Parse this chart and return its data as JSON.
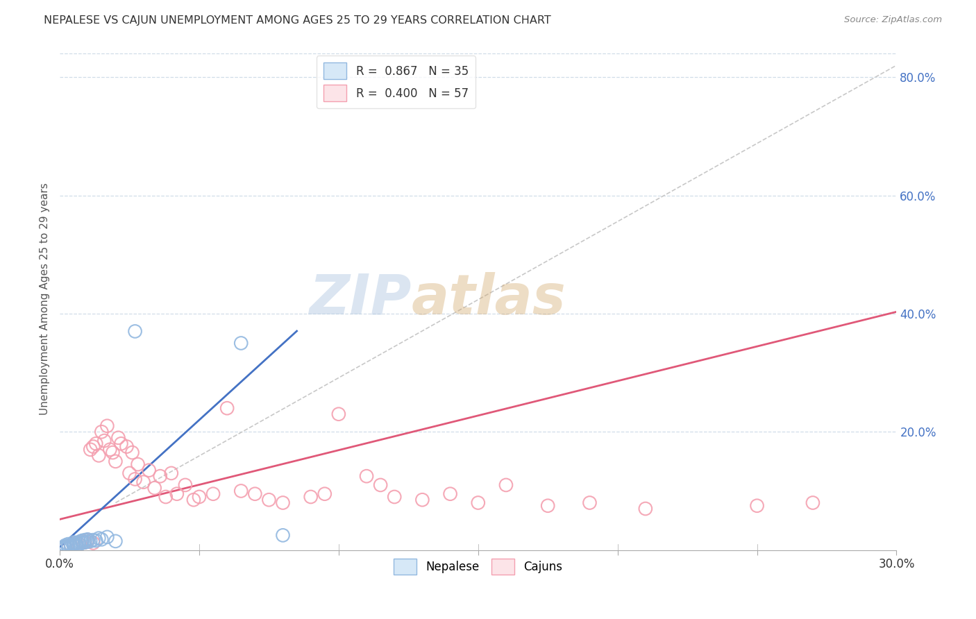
{
  "title": "NEPALESE VS CAJUN UNEMPLOYMENT AMONG AGES 25 TO 29 YEARS CORRELATION CHART",
  "source": "Source: ZipAtlas.com",
  "ylabel": "Unemployment Among Ages 25 to 29 years",
  "nepalese_color": "#92b8e0",
  "cajun_color": "#f4a0b0",
  "nepalese_line_color": "#4472c4",
  "cajun_line_color": "#e05878",
  "diagonal_line_color": "#c8c8c8",
  "watermark_color": "#c8d8ee",
  "background_color": "#ffffff",
  "grid_color": "#d0dde8",
  "xlim": [
    0.0,
    0.3
  ],
  "ylim": [
    0.0,
    0.85
  ],
  "nepalese_R": 0.867,
  "nepalese_N": 35,
  "cajun_R": 0.4,
  "cajun_N": 57,
  "nepalese_x": [
    0.0005,
    0.001,
    0.001,
    0.0015,
    0.002,
    0.002,
    0.002,
    0.003,
    0.003,
    0.003,
    0.004,
    0.004,
    0.005,
    0.005,
    0.005,
    0.006,
    0.006,
    0.007,
    0.007,
    0.008,
    0.008,
    0.009,
    0.009,
    0.01,
    0.01,
    0.011,
    0.012,
    0.013,
    0.014,
    0.015,
    0.017,
    0.02,
    0.027,
    0.065,
    0.08
  ],
  "nepalese_y": [
    0.002,
    0.003,
    0.004,
    0.005,
    0.004,
    0.006,
    0.008,
    0.005,
    0.007,
    0.01,
    0.006,
    0.009,
    0.007,
    0.01,
    0.013,
    0.008,
    0.012,
    0.01,
    0.014,
    0.012,
    0.016,
    0.013,
    0.017,
    0.014,
    0.018,
    0.015,
    0.017,
    0.016,
    0.02,
    0.018,
    0.022,
    0.015,
    0.37,
    0.35,
    0.025
  ],
  "cajun_x": [
    0.002,
    0.004,
    0.005,
    0.006,
    0.007,
    0.008,
    0.009,
    0.01,
    0.011,
    0.012,
    0.012,
    0.013,
    0.014,
    0.015,
    0.016,
    0.017,
    0.018,
    0.019,
    0.02,
    0.021,
    0.022,
    0.024,
    0.025,
    0.026,
    0.027,
    0.028,
    0.03,
    0.032,
    0.034,
    0.036,
    0.038,
    0.04,
    0.042,
    0.045,
    0.048,
    0.05,
    0.055,
    0.06,
    0.065,
    0.07,
    0.075,
    0.08,
    0.09,
    0.095,
    0.1,
    0.11,
    0.115,
    0.12,
    0.13,
    0.14,
    0.15,
    0.16,
    0.175,
    0.19,
    0.21,
    0.25,
    0.27
  ],
  "cajun_y": [
    0.005,
    0.008,
    0.01,
    0.012,
    0.01,
    0.015,
    0.013,
    0.017,
    0.17,
    0.175,
    0.012,
    0.18,
    0.16,
    0.2,
    0.185,
    0.21,
    0.17,
    0.165,
    0.15,
    0.19,
    0.18,
    0.175,
    0.13,
    0.165,
    0.12,
    0.145,
    0.115,
    0.135,
    0.105,
    0.125,
    0.09,
    0.13,
    0.095,
    0.11,
    0.085,
    0.09,
    0.095,
    0.24,
    0.1,
    0.095,
    0.085,
    0.08,
    0.09,
    0.095,
    0.23,
    0.125,
    0.11,
    0.09,
    0.085,
    0.095,
    0.08,
    0.11,
    0.075,
    0.08,
    0.07,
    0.075,
    0.08
  ],
  "nepalese_line_x0": 0.0,
  "nepalese_line_x1": 0.085,
  "cajun_line_x0": 0.0,
  "cajun_line_x1": 0.3
}
